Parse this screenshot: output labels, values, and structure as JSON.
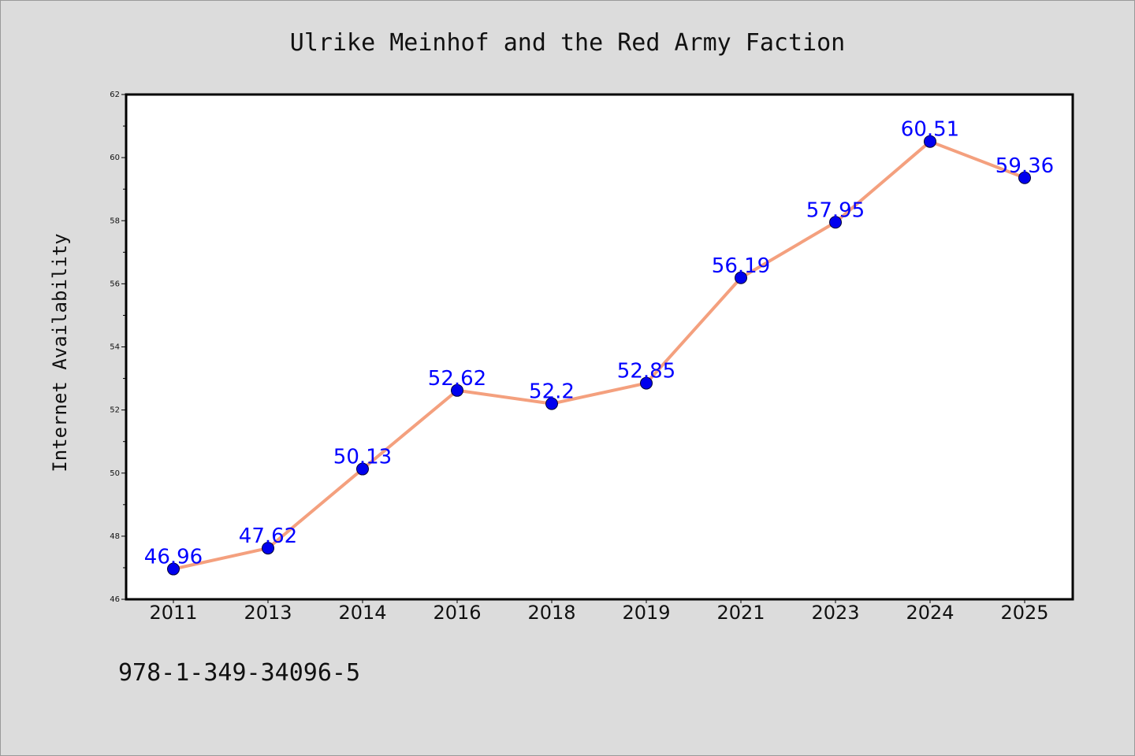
{
  "chart_data": {
    "type": "line",
    "title": "Ulrike Meinhof and the Red Army Faction",
    "xlabel": "",
    "ylabel": "Internet Availability",
    "categories": [
      "2011",
      "2013",
      "2014",
      "2016",
      "2018",
      "2019",
      "2021",
      "2023",
      "2024",
      "2025"
    ],
    "series": [
      {
        "values": [
          46.96,
          47.62,
          50.13,
          52.62,
          52.2,
          52.85,
          56.19,
          57.95,
          60.51,
          59.36
        ],
        "data_labels": [
          "46.96",
          "47.62",
          "50.13",
          "52.62",
          "52.2",
          "52.85",
          "56.19",
          "57.95",
          "60.51",
          "59.36"
        ],
        "line_color": "#f4a07e",
        "marker_color": "#0000ee"
      }
    ],
    "ylim": [
      46,
      62
    ],
    "yticks": [
      "46",
      "48",
      "50",
      "52",
      "54",
      "56",
      "58",
      "60",
      "62"
    ],
    "grid": false,
    "legend": "none",
    "label_color": "#0000ff",
    "background_color": "#dcdcdc"
  },
  "footer": {
    "isbn": "978-1-349-34096-5"
  }
}
